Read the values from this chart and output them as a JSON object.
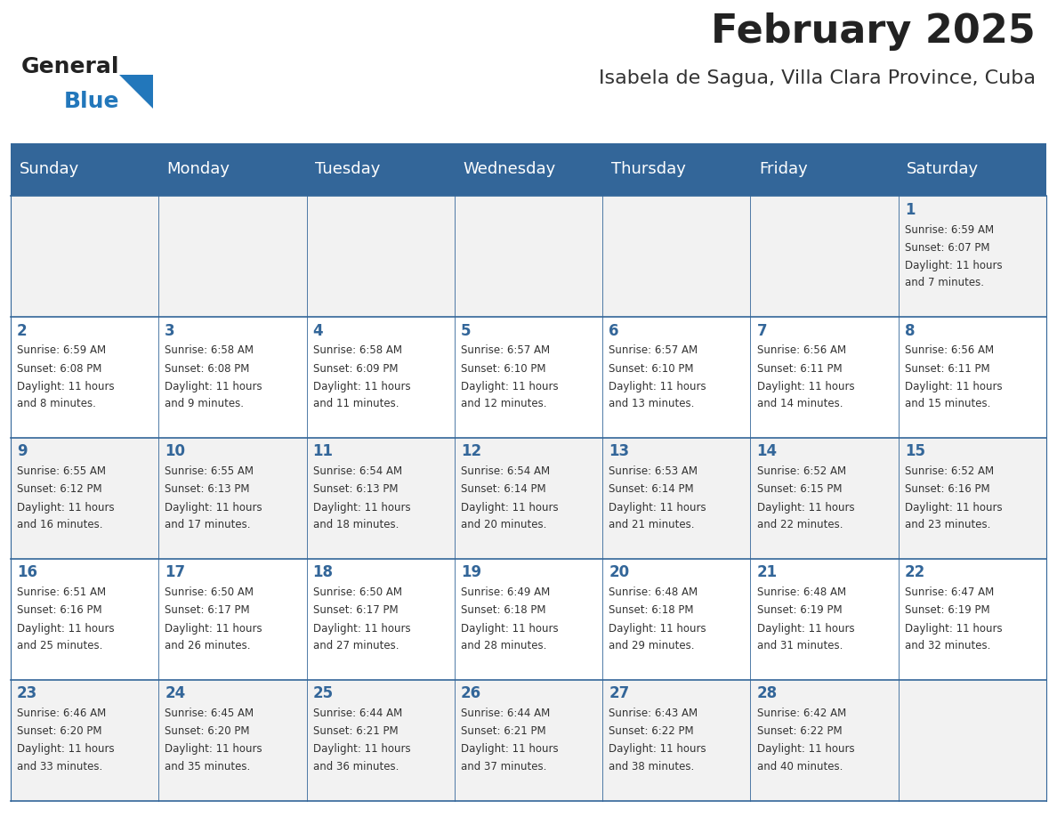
{
  "title": "February 2025",
  "subtitle": "Isabela de Sagua, Villa Clara Province, Cuba",
  "days_of_week": [
    "Sunday",
    "Monday",
    "Tuesday",
    "Wednesday",
    "Thursday",
    "Friday",
    "Saturday"
  ],
  "header_bg": "#336699",
  "header_text": "#ffffff",
  "cell_bg_odd": "#f2f2f2",
  "cell_bg_even": "#ffffff",
  "border_color": "#336699",
  "title_color": "#222222",
  "subtitle_color": "#333333",
  "day_number_color": "#336699",
  "cell_text_color": "#333333",
  "calendar": [
    [
      null,
      null,
      null,
      null,
      null,
      null,
      {
        "day": 1,
        "sunrise": "6:59 AM",
        "sunset": "6:07 PM",
        "daylight": "11 hours and 7 minutes"
      }
    ],
    [
      {
        "day": 2,
        "sunrise": "6:59 AM",
        "sunset": "6:08 PM",
        "daylight": "11 hours and 8 minutes"
      },
      {
        "day": 3,
        "sunrise": "6:58 AM",
        "sunset": "6:08 PM",
        "daylight": "11 hours and 9 minutes"
      },
      {
        "day": 4,
        "sunrise": "6:58 AM",
        "sunset": "6:09 PM",
        "daylight": "11 hours and 11 minutes"
      },
      {
        "day": 5,
        "sunrise": "6:57 AM",
        "sunset": "6:10 PM",
        "daylight": "11 hours and 12 minutes"
      },
      {
        "day": 6,
        "sunrise": "6:57 AM",
        "sunset": "6:10 PM",
        "daylight": "11 hours and 13 minutes"
      },
      {
        "day": 7,
        "sunrise": "6:56 AM",
        "sunset": "6:11 PM",
        "daylight": "11 hours and 14 minutes"
      },
      {
        "day": 8,
        "sunrise": "6:56 AM",
        "sunset": "6:11 PM",
        "daylight": "11 hours and 15 minutes"
      }
    ],
    [
      {
        "day": 9,
        "sunrise": "6:55 AM",
        "sunset": "6:12 PM",
        "daylight": "11 hours and 16 minutes"
      },
      {
        "day": 10,
        "sunrise": "6:55 AM",
        "sunset": "6:13 PM",
        "daylight": "11 hours and 17 minutes"
      },
      {
        "day": 11,
        "sunrise": "6:54 AM",
        "sunset": "6:13 PM",
        "daylight": "11 hours and 18 minutes"
      },
      {
        "day": 12,
        "sunrise": "6:54 AM",
        "sunset": "6:14 PM",
        "daylight": "11 hours and 20 minutes"
      },
      {
        "day": 13,
        "sunrise": "6:53 AM",
        "sunset": "6:14 PM",
        "daylight": "11 hours and 21 minutes"
      },
      {
        "day": 14,
        "sunrise": "6:52 AM",
        "sunset": "6:15 PM",
        "daylight": "11 hours and 22 minutes"
      },
      {
        "day": 15,
        "sunrise": "6:52 AM",
        "sunset": "6:16 PM",
        "daylight": "11 hours and 23 minutes"
      }
    ],
    [
      {
        "day": 16,
        "sunrise": "6:51 AM",
        "sunset": "6:16 PM",
        "daylight": "11 hours and 25 minutes"
      },
      {
        "day": 17,
        "sunrise": "6:50 AM",
        "sunset": "6:17 PM",
        "daylight": "11 hours and 26 minutes"
      },
      {
        "day": 18,
        "sunrise": "6:50 AM",
        "sunset": "6:17 PM",
        "daylight": "11 hours and 27 minutes"
      },
      {
        "day": 19,
        "sunrise": "6:49 AM",
        "sunset": "6:18 PM",
        "daylight": "11 hours and 28 minutes"
      },
      {
        "day": 20,
        "sunrise": "6:48 AM",
        "sunset": "6:18 PM",
        "daylight": "11 hours and 29 minutes"
      },
      {
        "day": 21,
        "sunrise": "6:48 AM",
        "sunset": "6:19 PM",
        "daylight": "11 hours and 31 minutes"
      },
      {
        "day": 22,
        "sunrise": "6:47 AM",
        "sunset": "6:19 PM",
        "daylight": "11 hours and 32 minutes"
      }
    ],
    [
      {
        "day": 23,
        "sunrise": "6:46 AM",
        "sunset": "6:20 PM",
        "daylight": "11 hours and 33 minutes"
      },
      {
        "day": 24,
        "sunrise": "6:45 AM",
        "sunset": "6:20 PM",
        "daylight": "11 hours and 35 minutes"
      },
      {
        "day": 25,
        "sunrise": "6:44 AM",
        "sunset": "6:21 PM",
        "daylight": "11 hours and 36 minutes"
      },
      {
        "day": 26,
        "sunrise": "6:44 AM",
        "sunset": "6:21 PM",
        "daylight": "11 hours and 37 minutes"
      },
      {
        "day": 27,
        "sunrise": "6:43 AM",
        "sunset": "6:22 PM",
        "daylight": "11 hours and 38 minutes"
      },
      {
        "day": 28,
        "sunrise": "6:42 AM",
        "sunset": "6:22 PM",
        "daylight": "11 hours and 40 minutes"
      },
      null
    ]
  ]
}
